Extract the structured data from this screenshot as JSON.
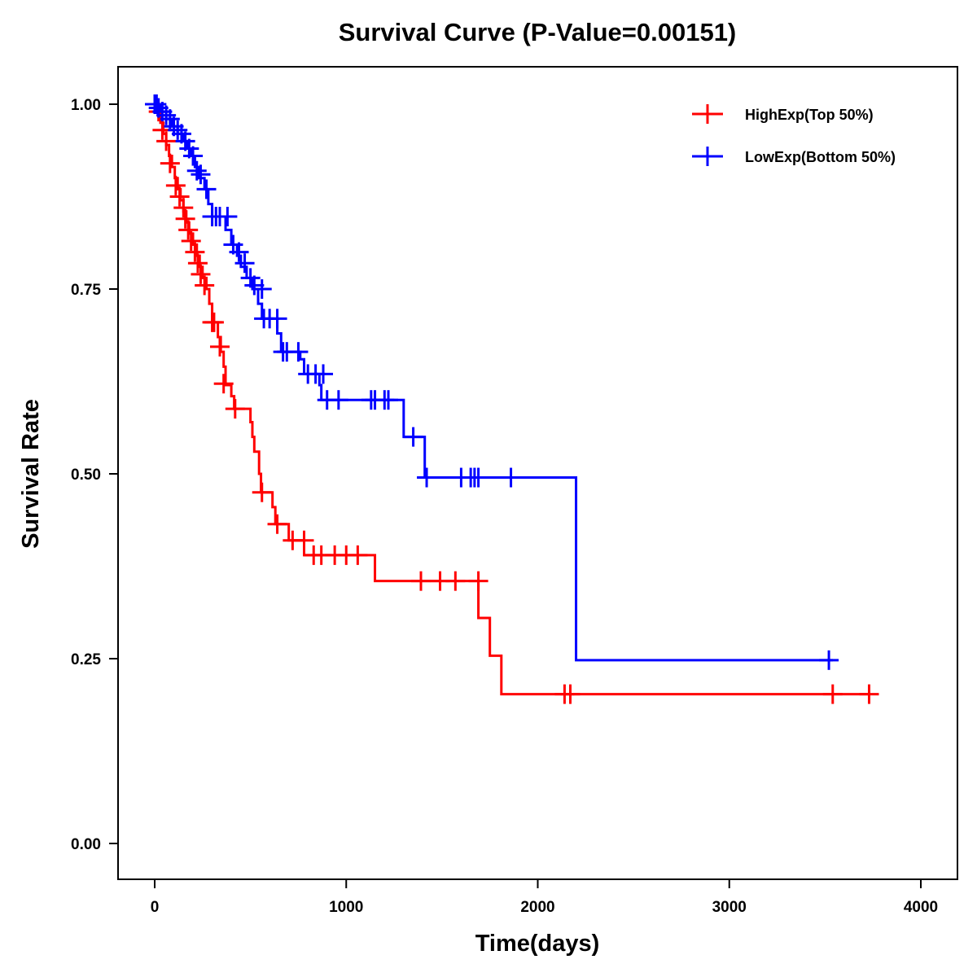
{
  "chart_data": {
    "type": "line",
    "subtype": "kaplan-meier-step",
    "title": "Survival Curve (P-Value=0.00151)",
    "xlabel": "Time(days)",
    "ylabel": "Survival Rate",
    "xlim": [
      -200,
      4200
    ],
    "ylim": [
      -0.05,
      1.05
    ],
    "x_ticks": [
      0,
      1000,
      2000,
      3000,
      4000
    ],
    "x_tick_labels": [
      "0",
      "1000",
      "2000",
      "3000",
      "4000"
    ],
    "y_ticks": [
      0,
      0.25,
      0.5,
      0.75,
      1.0
    ],
    "y_tick_labels": [
      "0.00",
      "0.25",
      "0.50",
      "0.75",
      "1.00"
    ],
    "grid": false,
    "legend_position": "top-right",
    "series": [
      {
        "name": "HighExp(Top 50%)",
        "color": "#ff0000",
        "steps": [
          [
            0,
            1.0
          ],
          [
            15,
            0.99
          ],
          [
            30,
            0.975
          ],
          [
            45,
            0.96
          ],
          [
            60,
            0.945
          ],
          [
            75,
            0.93
          ],
          [
            90,
            0.915
          ],
          [
            105,
            0.9
          ],
          [
            120,
            0.885
          ],
          [
            135,
            0.87
          ],
          [
            150,
            0.855
          ],
          [
            165,
            0.84
          ],
          [
            180,
            0.825
          ],
          [
            200,
            0.81
          ],
          [
            220,
            0.795
          ],
          [
            235,
            0.78
          ],
          [
            250,
            0.765
          ],
          [
            270,
            0.75
          ],
          [
            285,
            0.73
          ],
          [
            300,
            0.705
          ],
          [
            330,
            0.685
          ],
          [
            345,
            0.665
          ],
          [
            360,
            0.645
          ],
          [
            370,
            0.62
          ],
          [
            400,
            0.605
          ],
          [
            415,
            0.588
          ],
          [
            500,
            0.57
          ],
          [
            510,
            0.55
          ],
          [
            520,
            0.53
          ],
          [
            545,
            0.5
          ],
          [
            555,
            0.475
          ],
          [
            615,
            0.455
          ],
          [
            630,
            0.432
          ],
          [
            700,
            0.41
          ],
          [
            780,
            0.39
          ],
          [
            1150,
            0.355
          ],
          [
            1690,
            0.305
          ],
          [
            1750,
            0.254
          ],
          [
            1810,
            0.202
          ],
          [
            3730,
            0.202
          ]
        ],
        "censored": [
          [
            20,
            0.99
          ],
          [
            40,
            0.965
          ],
          [
            60,
            0.95
          ],
          [
            80,
            0.92
          ],
          [
            110,
            0.89
          ],
          [
            130,
            0.875
          ],
          [
            150,
            0.86
          ],
          [
            160,
            0.845
          ],
          [
            175,
            0.83
          ],
          [
            190,
            0.815
          ],
          [
            210,
            0.8
          ],
          [
            225,
            0.785
          ],
          [
            240,
            0.77
          ],
          [
            260,
            0.755
          ],
          [
            300,
            0.705
          ],
          [
            310,
            0.705
          ],
          [
            340,
            0.672
          ],
          [
            360,
            0.622
          ],
          [
            420,
            0.588
          ],
          [
            560,
            0.475
          ],
          [
            640,
            0.432
          ],
          [
            720,
            0.41
          ],
          [
            780,
            0.41
          ],
          [
            830,
            0.39
          ],
          [
            870,
            0.39
          ],
          [
            940,
            0.39
          ],
          [
            1000,
            0.39
          ],
          [
            1060,
            0.39
          ],
          [
            1390,
            0.355
          ],
          [
            1490,
            0.355
          ],
          [
            1570,
            0.355
          ],
          [
            1690,
            0.355
          ],
          [
            2140,
            0.202
          ],
          [
            2170,
            0.202
          ],
          [
            3540,
            0.202
          ],
          [
            3730,
            0.202
          ]
        ]
      },
      {
        "name": "LowExp(Bottom 50%)",
        "color": "#0000ff",
        "steps": [
          [
            0,
            1.0
          ],
          [
            30,
            0.99
          ],
          [
            60,
            0.98
          ],
          [
            90,
            0.97
          ],
          [
            120,
            0.96
          ],
          [
            150,
            0.95
          ],
          [
            170,
            0.94
          ],
          [
            190,
            0.93
          ],
          [
            210,
            0.915
          ],
          [
            230,
            0.9
          ],
          [
            260,
            0.885
          ],
          [
            280,
            0.865
          ],
          [
            300,
            0.848
          ],
          [
            370,
            0.83
          ],
          [
            400,
            0.81
          ],
          [
            430,
            0.795
          ],
          [
            450,
            0.78
          ],
          [
            480,
            0.765
          ],
          [
            510,
            0.75
          ],
          [
            540,
            0.73
          ],
          [
            560,
            0.71
          ],
          [
            640,
            0.69
          ],
          [
            660,
            0.665
          ],
          [
            760,
            0.655
          ],
          [
            780,
            0.635
          ],
          [
            860,
            0.62
          ],
          [
            870,
            0.6
          ],
          [
            1300,
            0.55
          ],
          [
            1410,
            0.495
          ],
          [
            2200,
            0.248
          ],
          [
            3540,
            0.248
          ]
        ],
        "censored": [
          [
            0,
            1.0
          ],
          [
            10,
            1.0
          ],
          [
            20,
            0.995
          ],
          [
            40,
            0.99
          ],
          [
            60,
            0.985
          ],
          [
            80,
            0.98
          ],
          [
            100,
            0.97
          ],
          [
            120,
            0.965
          ],
          [
            140,
            0.96
          ],
          [
            160,
            0.95
          ],
          [
            180,
            0.94
          ],
          [
            200,
            0.93
          ],
          [
            220,
            0.91
          ],
          [
            240,
            0.905
          ],
          [
            270,
            0.885
          ],
          [
            300,
            0.848
          ],
          [
            320,
            0.848
          ],
          [
            340,
            0.848
          ],
          [
            380,
            0.848
          ],
          [
            410,
            0.81
          ],
          [
            440,
            0.8
          ],
          [
            470,
            0.785
          ],
          [
            500,
            0.765
          ],
          [
            520,
            0.755
          ],
          [
            560,
            0.75
          ],
          [
            570,
            0.71
          ],
          [
            600,
            0.71
          ],
          [
            640,
            0.71
          ],
          [
            670,
            0.665
          ],
          [
            690,
            0.665
          ],
          [
            750,
            0.665
          ],
          [
            800,
            0.635
          ],
          [
            840,
            0.635
          ],
          [
            880,
            0.635
          ],
          [
            900,
            0.6
          ],
          [
            960,
            0.6
          ],
          [
            1130,
            0.6
          ],
          [
            1150,
            0.6
          ],
          [
            1200,
            0.6
          ],
          [
            1220,
            0.6
          ],
          [
            1350,
            0.55
          ],
          [
            1420,
            0.495
          ],
          [
            1600,
            0.495
          ],
          [
            1650,
            0.495
          ],
          [
            1670,
            0.495
          ],
          [
            1690,
            0.495
          ],
          [
            1860,
            0.495
          ],
          [
            3520,
            0.248
          ]
        ]
      }
    ]
  }
}
